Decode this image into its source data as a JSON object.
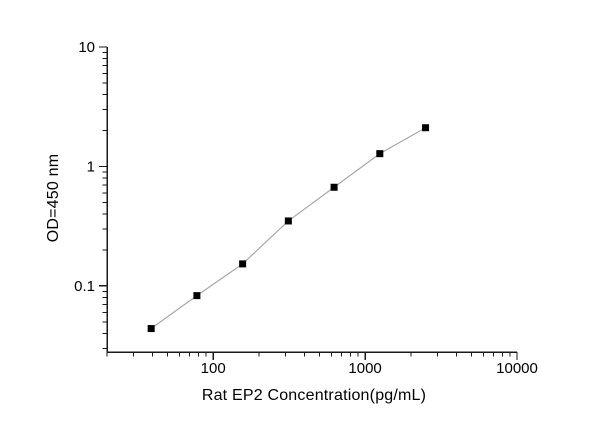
{
  "figure": {
    "background_color": "#ffffff",
    "x_axis_title": "Rat EP2 Concentration(pg/mL)",
    "y_axis_title": "OD=450 nm"
  },
  "chart_data": {
    "type": "line",
    "title": "",
    "xlabel": "Rat EP2 Concentration(pg/mL)",
    "ylabel": "OD=450 nm",
    "x_scale": "log",
    "y_scale": "log",
    "xlim": [
      20,
      10000
    ],
    "ylim": [
      0.028,
      10
    ],
    "x_ticks": [
      100,
      1000,
      10000
    ],
    "x_tick_labels": [
      "100",
      "1000",
      "10000"
    ],
    "y_ticks": [
      0.1,
      1,
      10
    ],
    "y_tick_labels": [
      "0.1",
      "1",
      "10"
    ],
    "grid": false,
    "legend": false,
    "series": [
      {
        "name": "standard curve",
        "x": [
          39.06,
          78.13,
          156.25,
          312.5,
          625,
          1250,
          2500
        ],
        "y": [
          0.044,
          0.083,
          0.153,
          0.35,
          0.67,
          1.28,
          2.11
        ],
        "marker": "filled-square",
        "marker_size": 7,
        "marker_color": "#000000",
        "line_color": "#a8a8a8"
      }
    ],
    "axis_color": "#1a1a1a",
    "tick_label_color": "#000000",
    "tick_label_font_size": 15
  }
}
